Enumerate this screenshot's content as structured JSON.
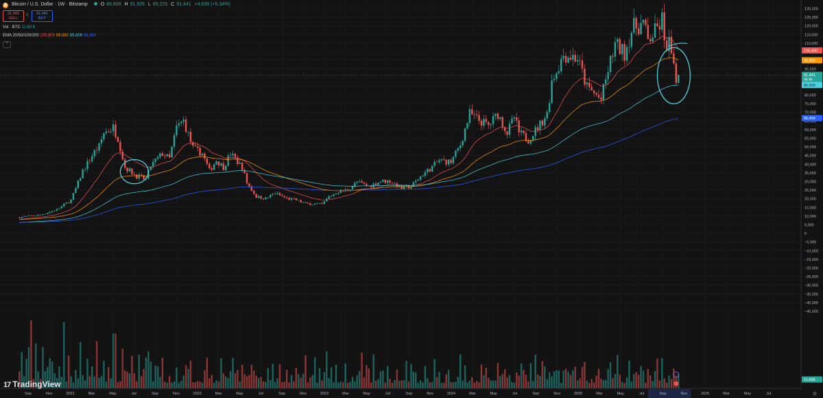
{
  "header": {
    "title": "Bitcoin / U.S. Dollar · 1W · Bitstamp",
    "o_label": "O",
    "o_value": "86,808",
    "h_label": "H",
    "h_value": "91,926",
    "l_label": "L",
    "l_value": "85,225",
    "c_label": "C",
    "c_value": "91,441",
    "change": "+4,630 (+5.34%)"
  },
  "trade": {
    "sell_price": "91,440",
    "sell_label": "SELL",
    "spread": "1",
    "buy_price": "91,441",
    "buy_label": "BUY"
  },
  "indicators": {
    "vol_label": "Vol · BTC",
    "vol_value": "11.69 K",
    "ema_label": "EMA 20/50/100/200",
    "ema_values": [
      "105,600",
      "99,882",
      "85,609",
      "66,454"
    ],
    "ema_colors": [
      "#ef5350",
      "#ff9800",
      "#4dd0e1",
      "#2962ff"
    ]
  },
  "branding": {
    "name": "TradingView"
  },
  "colors": {
    "up": "#26a69a",
    "down": "#ef5350",
    "annotation": "#4dd0e1",
    "background": "#131313"
  },
  "chart_data": {
    "type": "candlestick",
    "interval": "1W",
    "y_axis_ticks": [
      "130,000",
      "125,000",
      "120,000",
      "115,000",
      "110,000",
      "105,000",
      "100,000",
      "95,000",
      "90,000",
      "85,000",
      "80,000",
      "75,000",
      "70,000",
      "65,000",
      "60,000",
      "55,000",
      "50,000",
      "45,000",
      "40,000",
      "35,000",
      "30,000",
      "25,000",
      "20,000",
      "15,000",
      "10,000",
      "5,000",
      "0",
      "−5,000",
      "−10,000",
      "−15,000",
      "−20,000",
      "−25,000",
      "−30,000",
      "−35,000",
      "−40,000",
      "−45,000"
    ],
    "ylim": [
      -47000,
      131500
    ],
    "x_axis_ticks": [
      "Sep",
      "Nov",
      "2021",
      "Mar",
      "May",
      "Jul",
      "Sep",
      "Nov",
      "2022",
      "Mar",
      "May",
      "Jul",
      "Sep",
      "Nov",
      "2023",
      "Mar",
      "May",
      "Jul",
      "Sep",
      "Nov",
      "2024",
      "Mar",
      "May",
      "Jul",
      "Sep",
      "Nov",
      "2025",
      "Mar",
      "May",
      "Jul",
      "Sep",
      "Nov",
      "2026",
      "Mar",
      "May",
      "Jul"
    ],
    "price_labels": [
      {
        "value": 105600,
        "text": "105,600",
        "color": "#ef5350"
      },
      {
        "value": 99882,
        "text": "99,882",
        "color": "#ff9800"
      },
      {
        "value": 91441,
        "text": "91,441",
        "sub": "3d 4h",
        "color": "#26a69a"
      },
      {
        "value": 85609,
        "text": "85,609",
        "color": "#4dd0e1"
      },
      {
        "value": 66454,
        "text": "66,454",
        "color": "#2962ff"
      }
    ],
    "volume_label": {
      "text": "11.69K",
      "color": "#26a69a"
    },
    "price_anchors": [
      [
        "2020-07-06",
        9100
      ],
      [
        "2020-09-07",
        10500
      ],
      [
        "2020-10-26",
        13500
      ],
      [
        "2020-12-07",
        19000
      ],
      [
        "2020-12-28",
        29000
      ],
      [
        "2021-01-11",
        36000
      ],
      [
        "2021-02-15",
        47000
      ],
      [
        "2021-03-01",
        50000
      ],
      [
        "2021-03-15",
        58000
      ],
      [
        "2021-04-12",
        61000
      ],
      [
        "2021-04-26",
        55000
      ],
      [
        "2021-05-17",
        38000
      ],
      [
        "2021-05-31",
        36000
      ],
      [
        "2021-06-21",
        33000
      ],
      [
        "2021-07-19",
        31000
      ],
      [
        "2021-08-02",
        39000
      ],
      [
        "2021-09-06",
        46000
      ],
      [
        "2021-09-27",
        43000
      ],
      [
        "2021-10-18",
        61000
      ],
      [
        "2021-11-08",
        65000
      ],
      [
        "2021-12-06",
        49000
      ],
      [
        "2022-01-03",
        46000
      ],
      [
        "2022-01-24",
        36000
      ],
      [
        "2022-02-14",
        42000
      ],
      [
        "2022-03-07",
        38000
      ],
      [
        "2022-03-28",
        46000
      ],
      [
        "2022-05-02",
        38000
      ],
      [
        "2022-05-16",
        29000
      ],
      [
        "2022-06-13",
        21000
      ],
      [
        "2022-07-11",
        20000
      ],
      [
        "2022-08-08",
        23000
      ],
      [
        "2022-09-12",
        20000
      ],
      [
        "2022-10-10",
        19000
      ],
      [
        "2022-11-07",
        17000
      ],
      [
        "2022-12-26",
        16500
      ],
      [
        "2023-01-16",
        21000
      ],
      [
        "2023-02-13",
        24000
      ],
      [
        "2023-03-13",
        25000
      ],
      [
        "2023-04-10",
        29500
      ],
      [
        "2023-05-15",
        27000
      ],
      [
        "2023-06-19",
        30000
      ],
      [
        "2023-07-17",
        30000
      ],
      [
        "2023-08-21",
        26000
      ],
      [
        "2023-09-18",
        27000
      ],
      [
        "2023-10-23",
        34000
      ],
      [
        "2023-11-13",
        37000
      ],
      [
        "2023-12-11",
        42000
      ],
      [
        "2024-01-15",
        41000
      ],
      [
        "2024-02-12",
        51000
      ],
      [
        "2024-03-11",
        69000
      ],
      [
        "2024-04-01",
        66000
      ],
      [
        "2024-05-06",
        62000
      ],
      [
        "2024-06-03",
        69000
      ],
      [
        "2024-07-01",
        58000
      ],
      [
        "2024-07-22",
        67000
      ],
      [
        "2024-08-05",
        58000
      ],
      [
        "2024-09-02",
        54000
      ],
      [
        "2024-10-07",
        63000
      ],
      [
        "2024-10-28",
        69000
      ],
      [
        "2024-11-11",
        88000
      ],
      [
        "2024-12-16",
        103000
      ],
      [
        "2025-01-13",
        102000
      ],
      [
        "2025-01-27",
        101000
      ],
      [
        "2025-02-24",
        84000
      ],
      [
        "2025-03-10",
        82000
      ],
      [
        "2025-04-07",
        77000
      ],
      [
        "2025-04-28",
        94000
      ],
      [
        "2025-05-19",
        109000
      ],
      [
        "2025-06-16",
        104000
      ],
      [
        "2025-07-07",
        117000
      ],
      [
        "2025-07-14",
        119000
      ],
      [
        "2025-08-11",
        121000
      ],
      [
        "2025-08-25",
        111000
      ],
      [
        "2025-09-29",
        120000
      ],
      [
        "2025-10-06",
        124000
      ],
      [
        "2025-10-13",
        108000
      ],
      [
        "2025-10-27",
        110000
      ],
      [
        "2025-11-03",
        103000
      ],
      [
        "2025-11-10",
        94000
      ],
      [
        "2025-11-17",
        87000
      ],
      [
        "2025-11-24",
        91441
      ]
    ],
    "annotations": [
      {
        "type": "ellipse",
        "center": [
          "2021-06-14",
          35500
        ],
        "x_span_days": 84,
        "y_span": [
          29000,
          43000
        ]
      },
      {
        "type": "ellipse",
        "center": [
          "2025-11-10",
          91000
        ],
        "x_span_days": 98,
        "y_span": [
          75000,
          107500
        ]
      }
    ]
  }
}
